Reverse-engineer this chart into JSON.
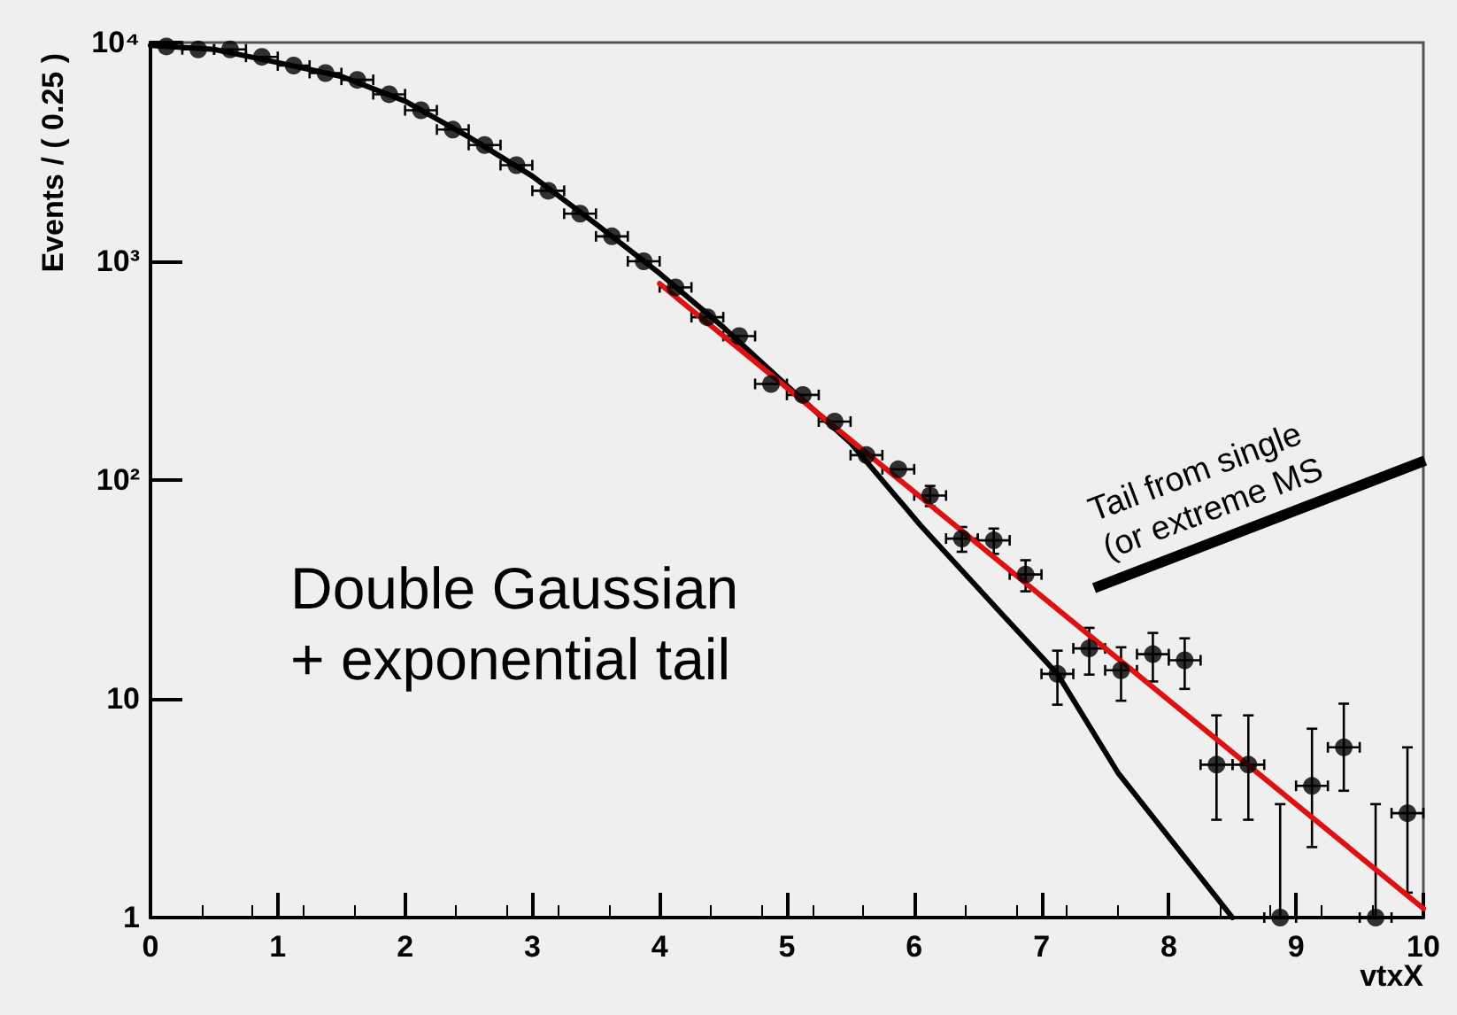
{
  "chart_data": {
    "type": "scatter",
    "xlabel": "vtxX",
    "ylabel": "Events / ( 0.25 )",
    "log": "y",
    "grid": false,
    "xlim": [
      0,
      10
    ],
    "xticks": [
      0,
      1,
      2,
      3,
      4,
      5,
      6,
      7,
      8,
      9,
      10
    ],
    "ylim": [
      1,
      10000
    ],
    "yticks": [
      1,
      10,
      {
        "value": 100,
        "label": "10²"
      },
      {
        "value": 1000,
        "label": "10³"
      },
      {
        "value": 10000,
        "label": "10⁴"
      }
    ],
    "annotations": [
      "Double Gaussian\n+ exponential tail",
      "Tail from single\n(or extreme MS"
    ],
    "series": [
      {
        "marker": "circle",
        "color": "#000000",
        "x": [
          0.125,
          0.375,
          0.625,
          0.875,
          1.125,
          1.375,
          1.625,
          1.875,
          2.125,
          2.375,
          2.625,
          2.875,
          3.125,
          3.375,
          3.625,
          3.875,
          4.125,
          4.375,
          4.625,
          4.875,
          5.125,
          5.375,
          5.625,
          5.875,
          6.125,
          6.375,
          6.625,
          6.875,
          7.125,
          7.375,
          7.625,
          7.875,
          8.125,
          8.375,
          8.625,
          8.875,
          9.125,
          9.375,
          9.625,
          9.875
        ],
        "values": [
          9600,
          9300,
          9300,
          8600,
          7850,
          7250,
          6750,
          5800,
          4900,
          4000,
          3400,
          2750,
          2100,
          1650,
          1300,
          1000,
          760,
          555,
          455,
          275,
          245,
          185,
          130,
          112,
          85,
          54,
          53,
          37,
          13,
          17,
          13.5,
          16,
          15,
          5,
          5,
          1,
          4,
          6,
          1,
          3
        ],
        "errors": [
          null,
          null,
          null,
          null,
          null,
          null,
          null,
          null,
          null,
          null,
          null,
          null,
          null,
          null,
          null,
          null,
          null,
          null,
          null,
          null,
          null,
          null,
          null,
          null,
          9,
          7,
          7,
          6,
          3.6,
          4.1,
          3.7,
          4,
          3.9,
          [
            2.8,
            8.4
          ],
          [
            2.8,
            8.4
          ],
          [
            1,
            3.3
          ],
          [
            2.1,
            7.3
          ],
          [
            3.8,
            9.5
          ],
          [
            1,
            3.3
          ],
          [
            1.3,
            6
          ]
        ],
        "xerrors": [
          0.125,
          0.125,
          0.125,
          0.125,
          0.125,
          0.125,
          0.125,
          0.125,
          0.125,
          0.125,
          0.125,
          0.125,
          0.125,
          0.125,
          0.125,
          0.125,
          0.125,
          0.125,
          0.125,
          0.125,
          0.125,
          0.125,
          0.125,
          0.125,
          0.125,
          0.125,
          0.125,
          0.125,
          0.125,
          0.125,
          0.125,
          0.125,
          0.125,
          0.125,
          0.125,
          0.125,
          0.125,
          0.125,
          0.125,
          0.125
        ]
      },
      {
        "type": "line",
        "color": "#000000",
        "x": [
          0,
          0.5,
          1,
          1.5,
          2,
          2.5,
          3,
          3.5,
          4,
          4.5,
          5,
          5.5,
          6.05,
          6.7,
          7.125,
          7.6,
          8.5
        ],
        "values": [
          9700,
          9300,
          8100,
          7000,
          5400,
          3700,
          2450,
          1480,
          880,
          500,
          270,
          148,
          62,
          24,
          13,
          4.6,
          1
        ]
      },
      {
        "type": "line",
        "color": "#e01010",
        "x": [
          4,
          10
        ],
        "values": [
          790,
          1.1
        ]
      }
    ]
  }
}
